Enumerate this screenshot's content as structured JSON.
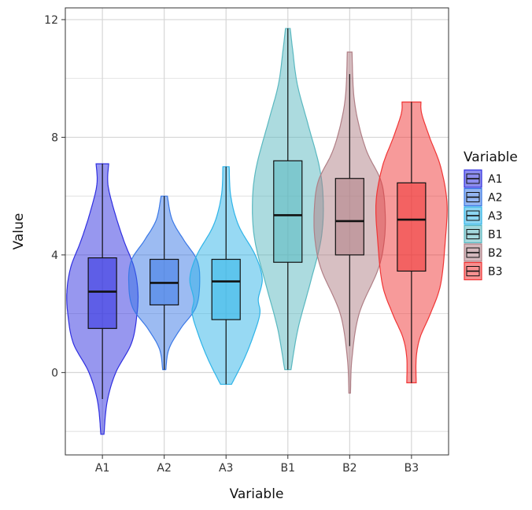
{
  "chart_data": {
    "type": "violin",
    "xlabel": "Variable",
    "ylabel": "Value",
    "ylim": [
      -2.8,
      12.4
    ],
    "yticks": [
      0,
      4,
      8,
      12
    ],
    "grid": true,
    "legend": {
      "title": "Variable",
      "placement": "right"
    },
    "categories": [
      "A1",
      "A2",
      "A3",
      "B1",
      "B2",
      "B3"
    ],
    "series": [
      {
        "name": "A1",
        "color": "#2f2fe0",
        "min": -2.1,
        "max": 7.1,
        "q1": 1.5,
        "median": 2.75,
        "q3": 3.9,
        "whisker_low": -0.9,
        "whisker_high": 7.1,
        "density": [
          [
            -2.1,
            0.02
          ],
          [
            -1.0,
            0.06
          ],
          [
            0.0,
            0.17
          ],
          [
            1.0,
            0.37
          ],
          [
            2.0,
            0.44
          ],
          [
            2.8,
            0.45
          ],
          [
            3.6,
            0.4
          ],
          [
            4.5,
            0.27
          ],
          [
            5.5,
            0.15
          ],
          [
            6.4,
            0.07
          ],
          [
            7.1,
            0.08
          ]
        ]
      },
      {
        "name": "A2",
        "color": "#3a78e6",
        "min": 0.1,
        "max": 6.0,
        "q1": 2.3,
        "median": 3.05,
        "q3": 3.85,
        "whisker_low": 0.1,
        "whisker_high": 6.0,
        "density": [
          [
            0.1,
            0.02
          ],
          [
            0.8,
            0.06
          ],
          [
            1.5,
            0.21
          ],
          [
            2.2,
            0.4
          ],
          [
            3.0,
            0.45
          ],
          [
            3.8,
            0.42
          ],
          [
            4.5,
            0.25
          ],
          [
            5.2,
            0.1
          ],
          [
            6.0,
            0.04
          ]
        ]
      },
      {
        "name": "A3",
        "color": "#2fb4e8",
        "min": -0.4,
        "max": 7.0,
        "q1": 1.8,
        "median": 3.1,
        "q3": 3.85,
        "whisker_low": -0.4,
        "whisker_high": 7.0,
        "density": [
          [
            -0.4,
            0.07
          ],
          [
            0.4,
            0.22
          ],
          [
            1.2,
            0.34
          ],
          [
            2.0,
            0.43
          ],
          [
            2.5,
            0.41
          ],
          [
            3.2,
            0.46
          ],
          [
            4.0,
            0.37
          ],
          [
            5.0,
            0.16
          ],
          [
            6.0,
            0.06
          ],
          [
            7.0,
            0.04
          ]
        ]
      },
      {
        "name": "B1",
        "color": "#5ab8c0",
        "min": 0.1,
        "max": 11.7,
        "q1": 3.75,
        "median": 5.35,
        "q3": 7.2,
        "whisker_low": 0.1,
        "whisker_high": 11.7,
        "density": [
          [
            0.1,
            0.04
          ],
          [
            1.5,
            0.13
          ],
          [
            3.0,
            0.28
          ],
          [
            4.5,
            0.42
          ],
          [
            5.8,
            0.45
          ],
          [
            7.0,
            0.4
          ],
          [
            8.5,
            0.25
          ],
          [
            9.8,
            0.12
          ],
          [
            11.0,
            0.06
          ],
          [
            11.7,
            0.03
          ]
        ]
      },
      {
        "name": "B2",
        "color": "#b07f86",
        "min": -0.7,
        "max": 10.9,
        "q1": 4.0,
        "median": 5.15,
        "q3": 6.6,
        "whisker_low": 0.9,
        "whisker_high": 10.15,
        "density": [
          [
            -0.7,
            0.01
          ],
          [
            0.5,
            0.03
          ],
          [
            2.0,
            0.12
          ],
          [
            3.5,
            0.36
          ],
          [
            4.5,
            0.44
          ],
          [
            5.5,
            0.45
          ],
          [
            6.5,
            0.4
          ],
          [
            7.5,
            0.22
          ],
          [
            8.5,
            0.11
          ],
          [
            9.5,
            0.05
          ],
          [
            10.9,
            0.03
          ]
        ]
      },
      {
        "name": "B3",
        "color": "#f03535",
        "min": -0.35,
        "max": 9.2,
        "q1": 3.45,
        "median": 5.2,
        "q3": 6.45,
        "whisker_low": -0.35,
        "whisker_high": 9.2,
        "density": [
          [
            -0.35,
            0.06
          ],
          [
            0.5,
            0.06
          ],
          [
            1.2,
            0.11
          ],
          [
            2.0,
            0.24
          ],
          [
            3.0,
            0.37
          ],
          [
            4.5,
            0.43
          ],
          [
            5.8,
            0.45
          ],
          [
            7.0,
            0.37
          ],
          [
            8.0,
            0.23
          ],
          [
            8.8,
            0.13
          ],
          [
            9.2,
            0.12
          ]
        ]
      }
    ]
  }
}
